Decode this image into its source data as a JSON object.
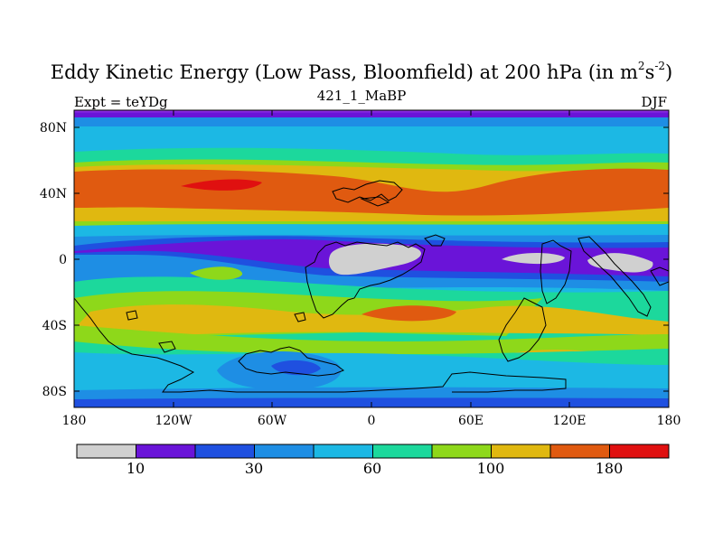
{
  "figure": {
    "title_main": "Eddy Kinetic Energy (Low Pass, Bloomfield) at 200 hPa (in m",
    "title_sup1": "2",
    "title_s": "s",
    "title_sup2": "-2",
    "title_close": ")",
    "subtitle": "421_1_MaBP",
    "left_label": "Expt = teYDg",
    "right_label": "DJF"
  },
  "axes": {
    "y_ticks": [
      "80N",
      "40N",
      "0",
      "40S",
      "80S"
    ],
    "x_ticks": [
      "180",
      "120W",
      "60W",
      "0",
      "60E",
      "120E",
      "180"
    ]
  },
  "colorbar": {
    "colors": [
      "#d0d0d0",
      "#6a14d8",
      "#1f50e0",
      "#1e8ee4",
      "#1cb8e4",
      "#1cd89c",
      "#8ed81a",
      "#e0b810",
      "#e05a10",
      "#e01010"
    ],
    "labels": [
      "10",
      "30",
      "60",
      "100",
      "180"
    ]
  }
}
